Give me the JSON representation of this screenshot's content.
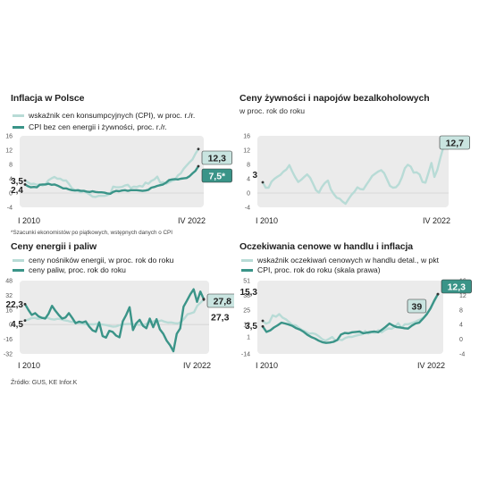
{
  "colors": {
    "light": "#b8dbd6",
    "dark": "#3a9488",
    "plotbg": "#ebebeb",
    "badge": "#c9e4e0"
  },
  "source": "Źródło: GUS, KE   Infor.K",
  "chart_data": [
    {
      "id": "inflacja",
      "type": "line",
      "title": "Inflacja w Polsce",
      "subtitle": "",
      "note": "*Szacunki ekonomistów po piątkowych, wstępnych danych o CPI",
      "x_start_label": "I 2010",
      "x_end_label": "IV 2022",
      "ylim": [
        -4,
        16
      ],
      "yticks": [
        -4,
        0,
        4,
        8,
        12,
        16
      ],
      "yticks_right": [],
      "series": [
        {
          "name": "wskaźnik cen konsumpcyjnych (CPI), w proc. r./r.",
          "color": "light",
          "width": 2.4,
          "values": [
            3.5,
            3.0,
            2.5,
            2.6,
            2.3,
            2.4,
            2.1,
            2.5,
            3.6,
            4.1,
            4.5,
            4.0,
            4.0,
            3.5,
            3.5,
            2.5,
            1.3,
            0.8,
            0.6,
            0.2,
            0.6,
            0.1,
            -0.4,
            -1.0,
            -1.1,
            -0.8,
            -0.8,
            -0.8,
            -0.6,
            -0.2,
            1.8,
            1.6,
            1.6,
            1.7,
            2.1,
            2.3,
            1.4,
            1.8,
            1.7,
            2.0,
            1.8,
            2.9,
            2.6,
            3.4,
            3.8,
            4.6,
            2.9,
            3.0,
            2.6,
            3.0,
            3.4,
            3.7,
            4.9,
            5.5,
            6.8,
            7.7,
            8.6,
            9.4,
            11.0,
            12.3
          ]
        },
        {
          "name": "CPI bez cen energii i żywności, proc. r./r.",
          "color": "dark",
          "width": 2.4,
          "values": [
            2.4,
            1.9,
            1.6,
            1.7,
            1.6,
            2.3,
            2.4,
            2.4,
            2.6,
            2.3,
            2.4,
            2.1,
            1.7,
            1.3,
            1.3,
            1.0,
            0.8,
            0.7,
            0.8,
            0.6,
            0.6,
            0.4,
            0.3,
            0.5,
            0.3,
            0.2,
            0.2,
            0.1,
            -0.1,
            -0.2,
            0.3,
            0.6,
            0.5,
            0.7,
            0.8,
            0.6,
            0.8,
            0.8,
            0.8,
            0.7,
            0.6,
            0.7,
            0.9,
            1.5,
            1.7,
            2.0,
            2.2,
            2.4,
            2.9,
            3.6,
            3.8,
            3.9,
            3.8,
            4.0,
            4.1,
            4.2,
            4.7,
            5.5,
            6.2,
            7.5
          ]
        }
      ],
      "start_labels": [
        "3,5",
        "2,4"
      ],
      "end_labels": [
        "12,3",
        "7,5*"
      ]
    },
    {
      "id": "zywnosc",
      "type": "line",
      "title": "Ceny żywności i napojów bezalkoholowych",
      "subtitle": "w proc. rok do roku",
      "note": "",
      "x_start_label": "I 2010",
      "x_end_label": "IV 2022",
      "ylim": [
        -4,
        16
      ],
      "yticks": [
        -4,
        0,
        4,
        8,
        12,
        16
      ],
      "yticks_right": [],
      "series": [
        {
          "name": "",
          "color": "light",
          "width": 2.4,
          "values": [
            3.0,
            1.5,
            1.5,
            3.2,
            4.0,
            4.6,
            5.1,
            6.0,
            6.6,
            7.8,
            6.0,
            4.4,
            3.1,
            3.7,
            4.5,
            5.2,
            4.3,
            2.6,
            0.8,
            0.1,
            1.7,
            2.8,
            3.5,
            1.0,
            -0.3,
            -1.3,
            -1.6,
            -2.4,
            -3.0,
            -1.7,
            -0.5,
            0.4,
            1.6,
            1.1,
            1.0,
            2.3,
            3.5,
            4.8,
            5.4,
            6.0,
            6.4,
            5.6,
            3.8,
            2.0,
            1.5,
            1.6,
            2.5,
            4.3,
            6.9,
            7.9,
            7.4,
            5.7,
            5.8,
            5.2,
            3.1,
            2.9,
            5.6,
            8.4,
            4.5,
            6.5,
            9.8,
            12.7
          ]
        }
      ],
      "start_labels": [
        "3"
      ],
      "end_labels": [
        "12,7"
      ]
    },
    {
      "id": "energia",
      "type": "line",
      "title": "Ceny energii i paliw",
      "subtitle": "",
      "note": "",
      "x_start_label": "I 2010",
      "x_end_label": "IV 2022",
      "ylim": [
        -32,
        48
      ],
      "yticks": [
        -32,
        -16,
        0,
        16,
        32,
        48
      ],
      "yticks_right": [],
      "series": [
        {
          "name": "ceny nośników energii, w proc. rok do roku",
          "color": "light",
          "width": 2.4,
          "values": [
            4.5,
            5.5,
            7.0,
            7.3,
            6.2,
            6.8,
            7.8,
            7.2,
            6.0,
            5.5,
            6.3,
            6.0,
            4.8,
            4.2,
            3.1,
            2.8,
            2.0,
            1.5,
            0.7,
            0.3,
            0.4,
            0.2,
            0.8,
            0.3,
            0.0,
            -0.6,
            -1.5,
            -2.2,
            -2.0,
            -0.8,
            0.3,
            0.5,
            0.8,
            0.4,
            0.2,
            -0.2,
            -0.3,
            0.1,
            2.0,
            3.0,
            4.1,
            3.6,
            4.5,
            3.0,
            2.1,
            2.3,
            1.6,
            1.2,
            2.8,
            6.5,
            11.2,
            12.3,
            13.5,
            20.5,
            24.0,
            27.3
          ]
        },
        {
          "name": "ceny paliw, proc. rok do roku",
          "color": "dark",
          "width": 2.4,
          "values": [
            22.3,
            16.0,
            10.5,
            12.5,
            9.0,
            7.3,
            6.5,
            12.0,
            20.5,
            15.0,
            10.5,
            6.5,
            7.8,
            12.5,
            7.3,
            1.5,
            3.2,
            2.2,
            3.5,
            -2.0,
            -6.2,
            -7.8,
            2.5,
            -12.5,
            -14.2,
            -6.8,
            -8.0,
            -12.0,
            -14.0,
            3.5,
            10.5,
            19.0,
            -6.0,
            1.5,
            5.2,
            -1.5,
            -4.0,
            6.5,
            -2.8,
            6.0,
            -5.2,
            -10.0,
            -17.6,
            -22.5,
            -29.2,
            -10.0,
            -4.2,
            19.5,
            26.0,
            33.0,
            38.5,
            24.8,
            36.0,
            27.8
          ]
        }
      ],
      "start_labels": [
        "22,3",
        "4,5"
      ],
      "end_labels": [
        "27,8",
        "27,3"
      ]
    },
    {
      "id": "oczekiwania",
      "type": "line",
      "title": "Oczekiwania cenowe w handlu i inflacja",
      "subtitle": "",
      "note": "",
      "x_start_label": "I 2010",
      "x_end_label": "IV 2022",
      "ylim": [
        -14,
        51
      ],
      "yticks": [
        -14,
        1,
        12,
        25,
        38,
        51
      ],
      "ylim_right": [
        -4,
        16
      ],
      "yticks_right": [
        -4,
        0,
        4,
        8,
        12,
        16
      ],
      "series": [
        {
          "name": "wskaźnik oczekiwań cenowych w handlu detal., w pkt",
          "color": "light",
          "width": 2.4,
          "axis": "left",
          "values": [
            15.3,
            12.8,
            14.0,
            20.2,
            19.0,
            21.3,
            18.2,
            16.7,
            14.2,
            11.7,
            11.3,
            8.8,
            7.0,
            5.7,
            4.0,
            4.3,
            3.5,
            1.5,
            -1.0,
            -2.3,
            -0.8,
            1.0,
            -2.3,
            -1.4,
            -1.7,
            0.2,
            1.1,
            1.1,
            2.0,
            2.7,
            3.3,
            6.3,
            4.0,
            5.3,
            4.8,
            7.0,
            5.1,
            7.2,
            8.6,
            8.3,
            10.0,
            13.2,
            9.0,
            12.3,
            12.3,
            13.3,
            14.3,
            15.7,
            17.0,
            19.0,
            23.0,
            28.0,
            33.0,
            39.0
          ]
        },
        {
          "name": "CPI, proc. rok do roku (skala prawa)",
          "color": "dark",
          "width": 2.4,
          "axis": "right",
          "values": [
            3.5,
            2.0,
            2.4,
            3.2,
            3.8,
            4.5,
            4.3,
            4.0,
            3.6,
            3.0,
            2.6,
            2.0,
            1.2,
            0.6,
            0.2,
            -0.4,
            -0.8,
            -1.0,
            -0.9,
            -0.7,
            -0.2,
            1.3,
            1.7,
            1.6,
            1.9,
            2.0,
            2.1,
            1.6,
            1.8,
            2.0,
            2.1,
            1.9,
            2.6,
            3.4,
            4.3,
            3.7,
            3.3,
            3.2,
            3.0,
            2.9,
            3.7,
            4.3,
            4.5,
            5.6,
            6.8,
            8.4,
            10.5,
            12.3
          ]
        }
      ],
      "start_labels": [
        "15,3",
        "3,5"
      ],
      "end_labels": [
        "39",
        "12,3"
      ]
    }
  ]
}
